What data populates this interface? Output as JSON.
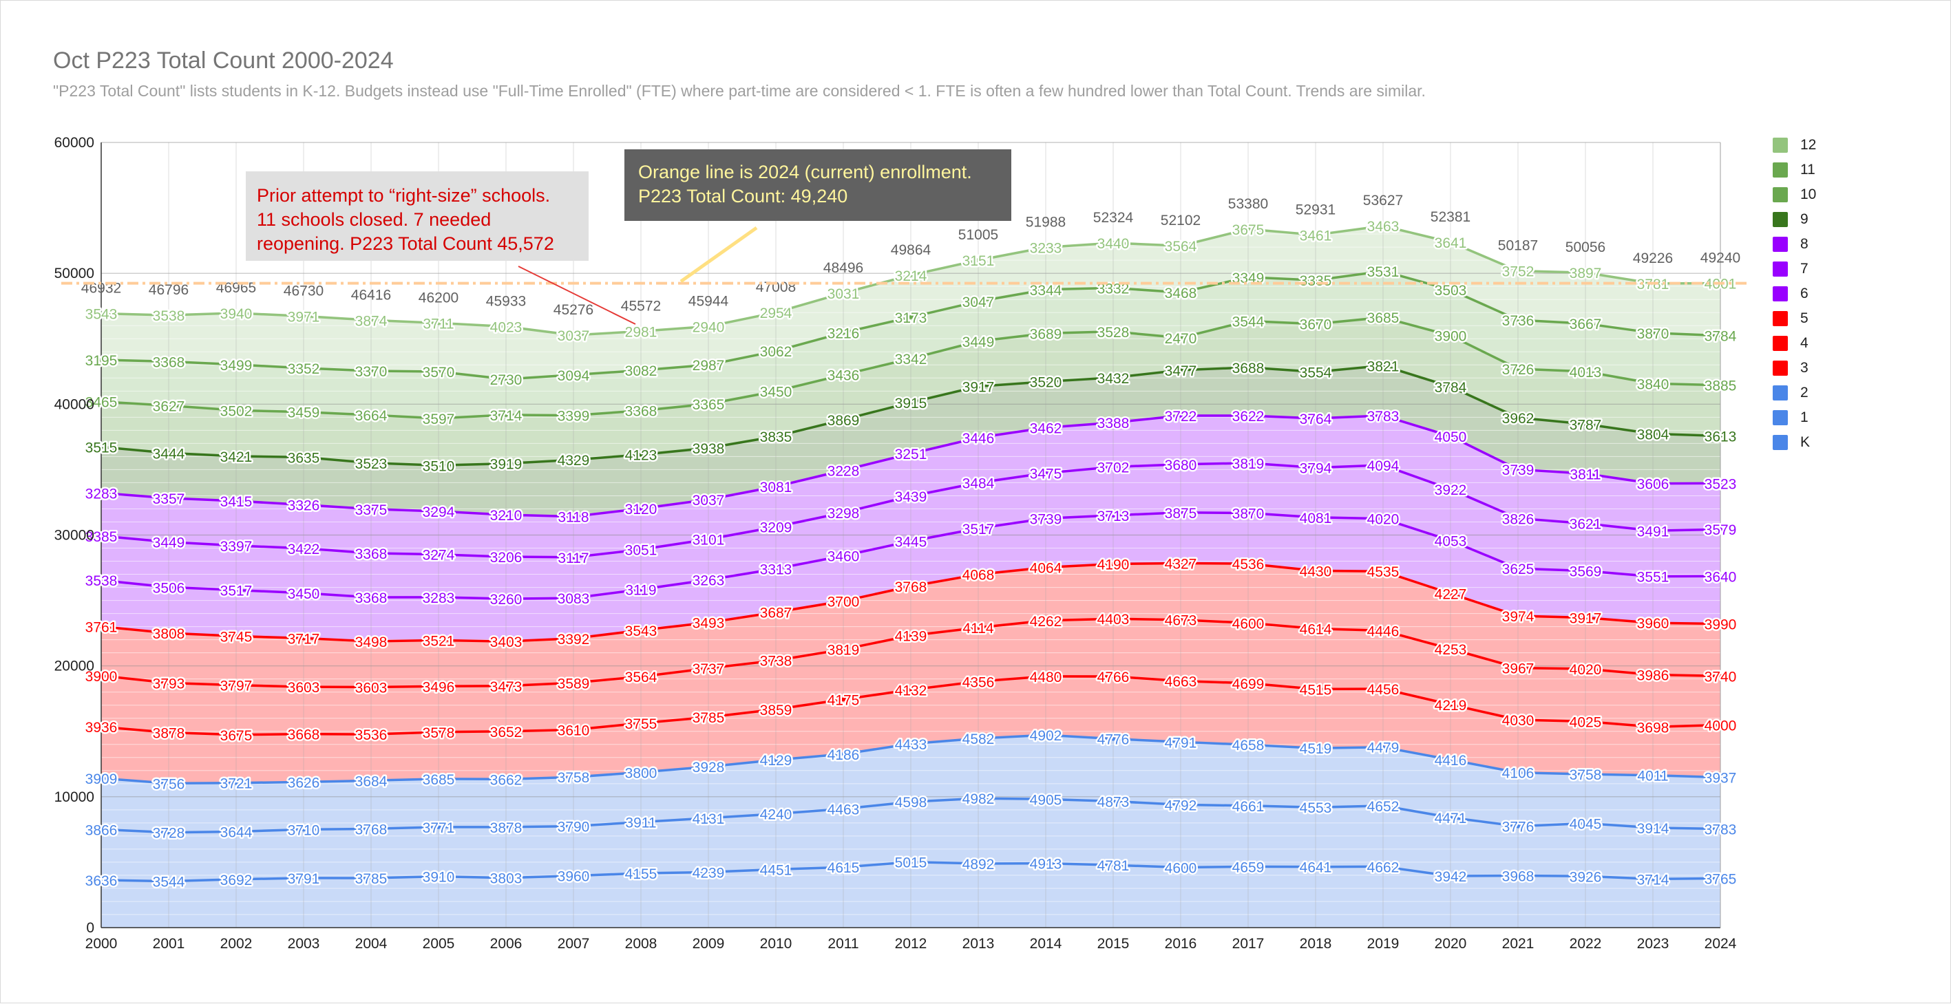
{
  "header": {
    "title": "Oct P223 Total Count 2000-2024",
    "subtitle": "\"P223 Total Count\" lists students in K-12.  Budgets instead use \"Full-Time Enrolled\" (FTE) where part-time are considered < 1. FTE is often a few hundred lower than Total Count. Trends are similar."
  },
  "annotations": {
    "gray_box_lines": [
      "Prior attempt to “right-size” schools.",
      "11 schools closed. 7 needed",
      "reopening. P223 Total Count 45,572"
    ],
    "dark_box_lines": [
      "Orange line is 2024 (current) enrollment.",
      "P223 Total Count: 49,240"
    ]
  },
  "chart_data": {
    "type": "area",
    "stacked": true,
    "x": [
      2000,
      2001,
      2002,
      2003,
      2004,
      2005,
      2006,
      2007,
      2008,
      2009,
      2010,
      2011,
      2012,
      2013,
      2014,
      2015,
      2016,
      2017,
      2018,
      2019,
      2020,
      2021,
      2022,
      2023,
      2024
    ],
    "ylim": [
      0,
      60000
    ],
    "yticks": [
      0,
      10000,
      20000,
      30000,
      40000,
      50000,
      60000
    ],
    "grid": true,
    "legend_position": "right",
    "reference_line": {
      "value": 49240,
      "color": "#ffcc99"
    },
    "totals": [
      46932,
      46796,
      46965,
      46730,
      46416,
      46200,
      45933,
      45276,
      45572,
      45944,
      47008,
      48496,
      49864,
      51005,
      51988,
      52324,
      52102,
      53380,
      52931,
      53627,
      52381,
      50187,
      50056,
      49226,
      49240
    ],
    "series": [
      {
        "name": "K",
        "color": "#4a86e8",
        "fill": "#c9daf8",
        "values": [
          3636,
          3544,
          3692,
          3791,
          3785,
          3910,
          3803,
          3960,
          4155,
          4239,
          4451,
          4615,
          5015,
          4892,
          4913,
          4781,
          4600,
          4659,
          4641,
          4662,
          3942,
          3968,
          3926,
          3714,
          3765
        ]
      },
      {
        "name": "1",
        "color": "#4a86e8",
        "fill": "#c9daf8",
        "values": [
          3866,
          3728,
          3644,
          3710,
          3768,
          3771,
          3878,
          3790,
          3911,
          4131,
          4240,
          4463,
          4598,
          4982,
          4905,
          4873,
          4792,
          4661,
          4553,
          4652,
          4471,
          3776,
          4045,
          3914,
          3783
        ]
      },
      {
        "name": "2",
        "color": "#4a86e8",
        "fill": "#c9daf8",
        "values": [
          3909,
          3756,
          3721,
          3626,
          3684,
          3685,
          3662,
          3758,
          3800,
          3928,
          4129,
          4186,
          4433,
          4582,
          4902,
          4776,
          4791,
          4658,
          4519,
          4479,
          4416,
          4106,
          3758,
          4011,
          3937
        ]
      },
      {
        "name": "3",
        "color": "#ff0000",
        "fill": "#ffb3b3",
        "values": [
          3936,
          3878,
          3675,
          3668,
          3536,
          3578,
          3652,
          3610,
          3755,
          3785,
          3859,
          4175,
          4132,
          4356,
          4480,
          4766,
          4663,
          4699,
          4515,
          4456,
          4219,
          4030,
          4025,
          3698,
          4000
        ]
      },
      {
        "name": "4",
        "color": "#ff0000",
        "fill": "#ffb3b3",
        "values": [
          3900,
          3793,
          3797,
          3603,
          3603,
          3496,
          3473,
          3589,
          3564,
          3737,
          3738,
          3819,
          4139,
          4114,
          4262,
          4403,
          4673,
          4600,
          4614,
          4446,
          4253,
          3967,
          4020,
          3986,
          3740
        ]
      },
      {
        "name": "5",
        "color": "#ff0000",
        "fill": "#ffb3b3",
        "values": [
          3761,
          3808,
          3745,
          3717,
          3498,
          3521,
          3403,
          3392,
          3543,
          3493,
          3687,
          3700,
          3768,
          4068,
          4064,
          4190,
          4327,
          4536,
          4430,
          4535,
          4227,
          3974,
          3917,
          3960,
          3990
        ]
      },
      {
        "name": "6",
        "color": "#9900ff",
        "fill": "#e0b3ff",
        "values": [
          3538,
          3506,
          3517,
          3450,
          3368,
          3283,
          3260,
          3083,
          3119,
          3263,
          3313,
          3460,
          3445,
          3517,
          3739,
          3713,
          3875,
          3870,
          4081,
          4020,
          4053,
          3625,
          3569,
          3551,
          3640
        ]
      },
      {
        "name": "7",
        "color": "#9900ff",
        "fill": "#e0b3ff",
        "values": [
          3385,
          3449,
          3397,
          3422,
          3368,
          3274,
          3206,
          3117,
          3051,
          3101,
          3209,
          3298,
          3439,
          3484,
          3475,
          3702,
          3680,
          3819,
          3794,
          4094,
          3922,
          3826,
          3621,
          3491,
          3579
        ]
      },
      {
        "name": "8",
        "color": "#9900ff",
        "fill": "#e0b3ff",
        "values": [
          3283,
          3357,
          3415,
          3326,
          3375,
          3294,
          3210,
          3118,
          3120,
          3037,
          3081,
          3228,
          3251,
          3446,
          3462,
          3388,
          3722,
          3622,
          3764,
          3783,
          4050,
          3739,
          3811,
          3606,
          3523
        ]
      },
      {
        "name": "9",
        "color": "#38761d",
        "fill": "#c3d4bc",
        "values": [
          3515,
          3444,
          3421,
          3635,
          3523,
          3510,
          3919,
          4329,
          4123,
          3938,
          3835,
          3869,
          3915,
          3917,
          3520,
          3432,
          3477,
          3688,
          3554,
          3821,
          3784,
          3962,
          3787,
          3804,
          3613
        ]
      },
      {
        "name": "10",
        "color": "#6aa84f",
        "fill": "#cfe2c6",
        "values": [
          3465,
          3627,
          3502,
          3459,
          3664,
          3597,
          3714,
          3399,
          3368,
          3365,
          3450,
          3436,
          3342,
          3449,
          3689,
          3528,
          2470,
          3544,
          3670,
          3685,
          3900,
          3726,
          4013,
          3840,
          3885
        ]
      },
      {
        "name": "11",
        "color": "#6aa84f",
        "fill": "#d9ead3",
        "values": [
          3195,
          3368,
          3499,
          3352,
          3370,
          3570,
          2730,
          3094,
          3082,
          2987,
          3062,
          3216,
          3173,
          3047,
          3344,
          3332,
          3468,
          3349,
          3335,
          3531,
          3503,
          3736,
          3667,
          3870,
          3784
        ]
      },
      {
        "name": "12",
        "color": "#93c47d",
        "fill": "#e4f0df",
        "values": [
          3543,
          3538,
          3940,
          3971,
          3874,
          3711,
          4023,
          3037,
          2981,
          2940,
          2954,
          3031,
          3214,
          3151,
          3233,
          3440,
          3564,
          3675,
          3461,
          3463,
          3641,
          3752,
          3897,
          3781,
          4001
        ]
      }
    ]
  }
}
